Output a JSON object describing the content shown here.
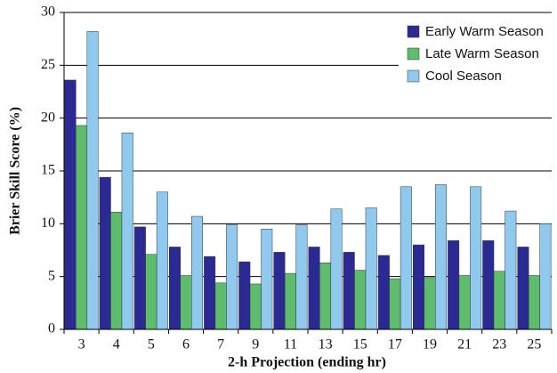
{
  "chart_data": {
    "type": "bar",
    "x_label": "2-h Projection (ending hr)",
    "y_label": "Brier Skill Score (%)",
    "categories": [
      "3",
      "4",
      "5",
      "6",
      "7",
      "9",
      "11",
      "13",
      "15",
      "17",
      "19",
      "21",
      "23",
      "25"
    ],
    "series": [
      {
        "name": "Early Warm Season",
        "color": "#2b2a94",
        "values": [
          23.6,
          14.4,
          9.7,
          7.8,
          6.9,
          6.4,
          7.3,
          7.8,
          7.3,
          7.0,
          8.0,
          8.4,
          8.4,
          7.8
        ]
      },
      {
        "name": "Late Warm Season",
        "color": "#5dbd6c",
        "values": [
          19.3,
          11.1,
          7.1,
          5.1,
          4.4,
          4.3,
          5.3,
          6.3,
          5.6,
          4.8,
          4.9,
          5.1,
          5.5,
          5.1
        ]
      },
      {
        "name": "Cool Season",
        "color": "#8fc9ee",
        "values": [
          28.2,
          18.6,
          13.0,
          10.7,
          9.9,
          9.5,
          9.9,
          11.4,
          11.5,
          13.5,
          13.7,
          13.5,
          11.2,
          10.0
        ]
      }
    ],
    "ylim": [
      0,
      30
    ],
    "yticks": [
      0,
      5,
      10,
      15,
      20,
      25,
      30
    ],
    "grid": true,
    "legend": "top-right"
  }
}
